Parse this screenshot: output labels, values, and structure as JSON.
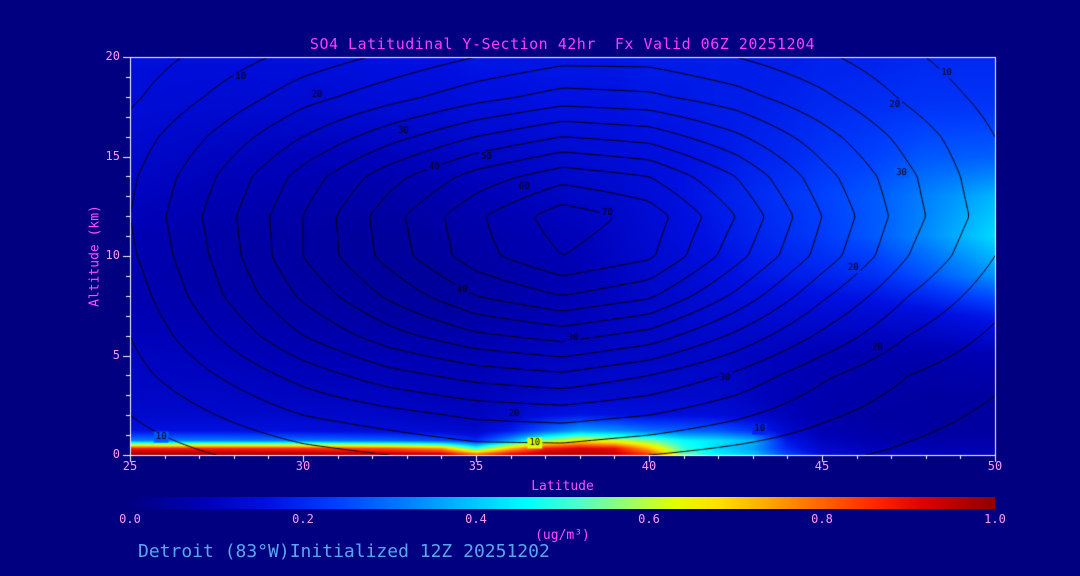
{
  "colors": {
    "background": "#000080",
    "frame": "#ffffff",
    "title": "#ff3dff",
    "labels": "#ff4fff",
    "ticks": "#ff9aff",
    "footer": "#5aa7ee",
    "contour": "#000000"
  },
  "footer": {
    "text": "Detroit (83°W)Initialized 12Z 20251202"
  },
  "chart_data": {
    "type": "heatmap",
    "title": "SO4 Latitudinal Y-Section 42hr  Fx Valid 06Z 20251204",
    "xlabel": "Latitude",
    "ylabel": "Altitude (km)",
    "xlim": [
      25,
      50
    ],
    "ylim": [
      0,
      20
    ],
    "x_ticks": [
      25,
      30,
      35,
      40,
      45,
      50
    ],
    "y_ticks": [
      0,
      5,
      10,
      15,
      20
    ],
    "x_major_step": 5,
    "x_minor_step": 1,
    "y_major_step": 5,
    "y_minor_step": 1,
    "colorbar": {
      "tick_labels": [
        "0.0",
        "0.2",
        "0.4",
        "0.6",
        "0.8",
        "1.0"
      ],
      "range": [
        0.0,
        1.0
      ],
      "units": "(ug/m³)"
    },
    "colormap": [
      [
        0.0,
        "#000082"
      ],
      [
        0.08,
        "#0000b4"
      ],
      [
        0.16,
        "#0010e1"
      ],
      [
        0.24,
        "#0040ff"
      ],
      [
        0.32,
        "#0080ff"
      ],
      [
        0.4,
        "#00c8ff"
      ],
      [
        0.46,
        "#00ffff"
      ],
      [
        0.52,
        "#50ffc8"
      ],
      [
        0.58,
        "#a0ff64"
      ],
      [
        0.63,
        "#e1ff00"
      ],
      [
        0.68,
        "#ffe100"
      ],
      [
        0.74,
        "#ffa500"
      ],
      [
        0.8,
        "#ff6400"
      ],
      [
        0.86,
        "#ff2800"
      ],
      [
        0.92,
        "#dc0000"
      ],
      [
        1.0,
        "#8f0000"
      ]
    ],
    "fill_field": {
      "units": "ug/m3",
      "lats": [
        25,
        27.5,
        30,
        32.5,
        34,
        35,
        36,
        37,
        38,
        39,
        40,
        41,
        42,
        43,
        44,
        45,
        46.5,
        48,
        50
      ],
      "alts": [
        0,
        0.3,
        0.7,
        1.2,
        2,
        3,
        5,
        7,
        9,
        11,
        13,
        15,
        17.5,
        20
      ],
      "values": [
        [
          0.98,
          0.98,
          0.97,
          0.96,
          0.95,
          0.8,
          0.92,
          0.96,
          0.96,
          0.94,
          0.85,
          0.55,
          0.45,
          0.4,
          0.25,
          0.15,
          0.11,
          0.1,
          0.1
        ],
        [
          0.88,
          0.87,
          0.86,
          0.82,
          0.75,
          0.5,
          0.72,
          0.88,
          0.92,
          0.9,
          0.72,
          0.5,
          0.42,
          0.36,
          0.2,
          0.12,
          0.09,
          0.08,
          0.08
        ],
        [
          0.32,
          0.32,
          0.31,
          0.29,
          0.26,
          0.2,
          0.36,
          0.56,
          0.66,
          0.62,
          0.55,
          0.46,
          0.43,
          0.38,
          0.17,
          0.1,
          0.07,
          0.06,
          0.06
        ],
        [
          0.16,
          0.16,
          0.15,
          0.14,
          0.13,
          0.12,
          0.18,
          0.28,
          0.36,
          0.34,
          0.3,
          0.28,
          0.27,
          0.22,
          0.12,
          0.08,
          0.06,
          0.05,
          0.05
        ],
        [
          0.12,
          0.12,
          0.12,
          0.11,
          0.1,
          0.1,
          0.12,
          0.15,
          0.17,
          0.16,
          0.15,
          0.15,
          0.14,
          0.12,
          0.09,
          0.07,
          0.05,
          0.05,
          0.05
        ],
        [
          0.11,
          0.11,
          0.1,
          0.1,
          0.09,
          0.09,
          0.1,
          0.11,
          0.12,
          0.12,
          0.12,
          0.12,
          0.12,
          0.1,
          0.08,
          0.07,
          0.06,
          0.05,
          0.05
        ],
        [
          0.1,
          0.09,
          0.08,
          0.08,
          0.08,
          0.08,
          0.09,
          0.1,
          0.1,
          0.11,
          0.11,
          0.11,
          0.11,
          0.1,
          0.09,
          0.08,
          0.07,
          0.07,
          0.08
        ],
        [
          0.08,
          0.07,
          0.06,
          0.05,
          0.05,
          0.06,
          0.07,
          0.08,
          0.09,
          0.1,
          0.11,
          0.12,
          0.13,
          0.13,
          0.13,
          0.13,
          0.13,
          0.14,
          0.18
        ],
        [
          0.07,
          0.06,
          0.05,
          0.04,
          0.04,
          0.05,
          0.06,
          0.07,
          0.08,
          0.1,
          0.12,
          0.13,
          0.15,
          0.17,
          0.18,
          0.19,
          0.21,
          0.26,
          0.34
        ],
        [
          0.08,
          0.06,
          0.05,
          0.04,
          0.05,
          0.06,
          0.07,
          0.08,
          0.09,
          0.11,
          0.13,
          0.15,
          0.17,
          0.19,
          0.21,
          0.23,
          0.27,
          0.33,
          0.42
        ],
        [
          0.1,
          0.08,
          0.07,
          0.06,
          0.07,
          0.08,
          0.09,
          0.1,
          0.11,
          0.12,
          0.14,
          0.16,
          0.18,
          0.2,
          0.22,
          0.24,
          0.27,
          0.32,
          0.38
        ],
        [
          0.12,
          0.1,
          0.09,
          0.09,
          0.1,
          0.11,
          0.11,
          0.12,
          0.13,
          0.14,
          0.15,
          0.16,
          0.17,
          0.19,
          0.2,
          0.22,
          0.24,
          0.27,
          0.28
        ],
        [
          0.14,
          0.13,
          0.13,
          0.14,
          0.14,
          0.15,
          0.15,
          0.16,
          0.16,
          0.16,
          0.17,
          0.17,
          0.18,
          0.18,
          0.19,
          0.2,
          0.21,
          0.22,
          0.22
        ],
        [
          0.15,
          0.15,
          0.15,
          0.16,
          0.16,
          0.17,
          0.17,
          0.17,
          0.17,
          0.17,
          0.18,
          0.18,
          0.18,
          0.18,
          0.18,
          0.19,
          0.19,
          0.2,
          0.2
        ]
      ]
    },
    "contour_overlay": {
      "levels": [
        5,
        10,
        15,
        20,
        25,
        30,
        35,
        40,
        45,
        50,
        55,
        60,
        65,
        70,
        75
      ],
      "labeled_levels": [
        10,
        20,
        30,
        40,
        50,
        60,
        70
      ],
      "lats": [
        25,
        27.5,
        30,
        32.5,
        35,
        37.5,
        40,
        42.5,
        45,
        47.5,
        50
      ],
      "alts": [
        0,
        2,
        4,
        6,
        8,
        10,
        12,
        14,
        16,
        18,
        20
      ],
      "values": [
        [
          2,
          5,
          8,
          10,
          12,
          12,
          10,
          8,
          6,
          4,
          2
        ],
        [
          5,
          10,
          15,
          18,
          21,
          22,
          20,
          16,
          11,
          7,
          4
        ],
        [
          8,
          15,
          22,
          28,
          32,
          34,
          30,
          24,
          16,
          10,
          6
        ],
        [
          10,
          20,
          30,
          38,
          44,
          47,
          43,
          34,
          24,
          15,
          9
        ],
        [
          12,
          24,
          36,
          46,
          55,
          60,
          56,
          44,
          31,
          20,
          12
        ],
        [
          14,
          26,
          40,
          52,
          63,
          70,
          66,
          52,
          38,
          25,
          15
        ],
        [
          15,
          27,
          40,
          53,
          64,
          73,
          68,
          55,
          40,
          27,
          17
        ],
        [
          14,
          25,
          37,
          48,
          57,
          63,
          60,
          50,
          37,
          26,
          16
        ],
        [
          12,
          21,
          30,
          38,
          45,
          50,
          48,
          41,
          32,
          23,
          15
        ],
        [
          9,
          16,
          23,
          28,
          33,
          37,
          36,
          32,
          26,
          19,
          13
        ],
        [
          7,
          12,
          17,
          21,
          25,
          28,
          28,
          25,
          21,
          16,
          11
        ]
      ],
      "labels": [
        {
          "lat": 28.2,
          "alt": 19.0,
          "text": "10"
        },
        {
          "lat": 30.4,
          "alt": 18.1,
          "text": "20"
        },
        {
          "lat": 32.9,
          "alt": 16.3,
          "text": "30"
        },
        {
          "lat": 33.8,
          "alt": 14.5,
          "text": "40"
        },
        {
          "lat": 35.3,
          "alt": 15.0,
          "text": "50"
        },
        {
          "lat": 36.4,
          "alt": 13.5,
          "text": "60"
        },
        {
          "lat": 38.8,
          "alt": 12.2,
          "text": "70"
        },
        {
          "lat": 48.6,
          "alt": 19.2,
          "text": "10"
        },
        {
          "lat": 47.1,
          "alt": 17.6,
          "text": "20"
        },
        {
          "lat": 47.3,
          "alt": 14.2,
          "text": "30"
        },
        {
          "lat": 34.6,
          "alt": 8.3,
          "text": "40"
        },
        {
          "lat": 37.8,
          "alt": 5.9,
          "text": "30"
        },
        {
          "lat": 36.1,
          "alt": 2.1,
          "text": "20"
        },
        {
          "lat": 36.7,
          "alt": 0.6,
          "text": "10"
        },
        {
          "lat": 25.9,
          "alt": 0.9,
          "text": "10"
        },
        {
          "lat": 42.2,
          "alt": 3.9,
          "text": "30"
        },
        {
          "lat": 46.6,
          "alt": 5.4,
          "text": "20"
        },
        {
          "lat": 43.2,
          "alt": 1.3,
          "text": "10"
        },
        {
          "lat": 45.9,
          "alt": 9.4,
          "text": "20"
        }
      ]
    }
  }
}
